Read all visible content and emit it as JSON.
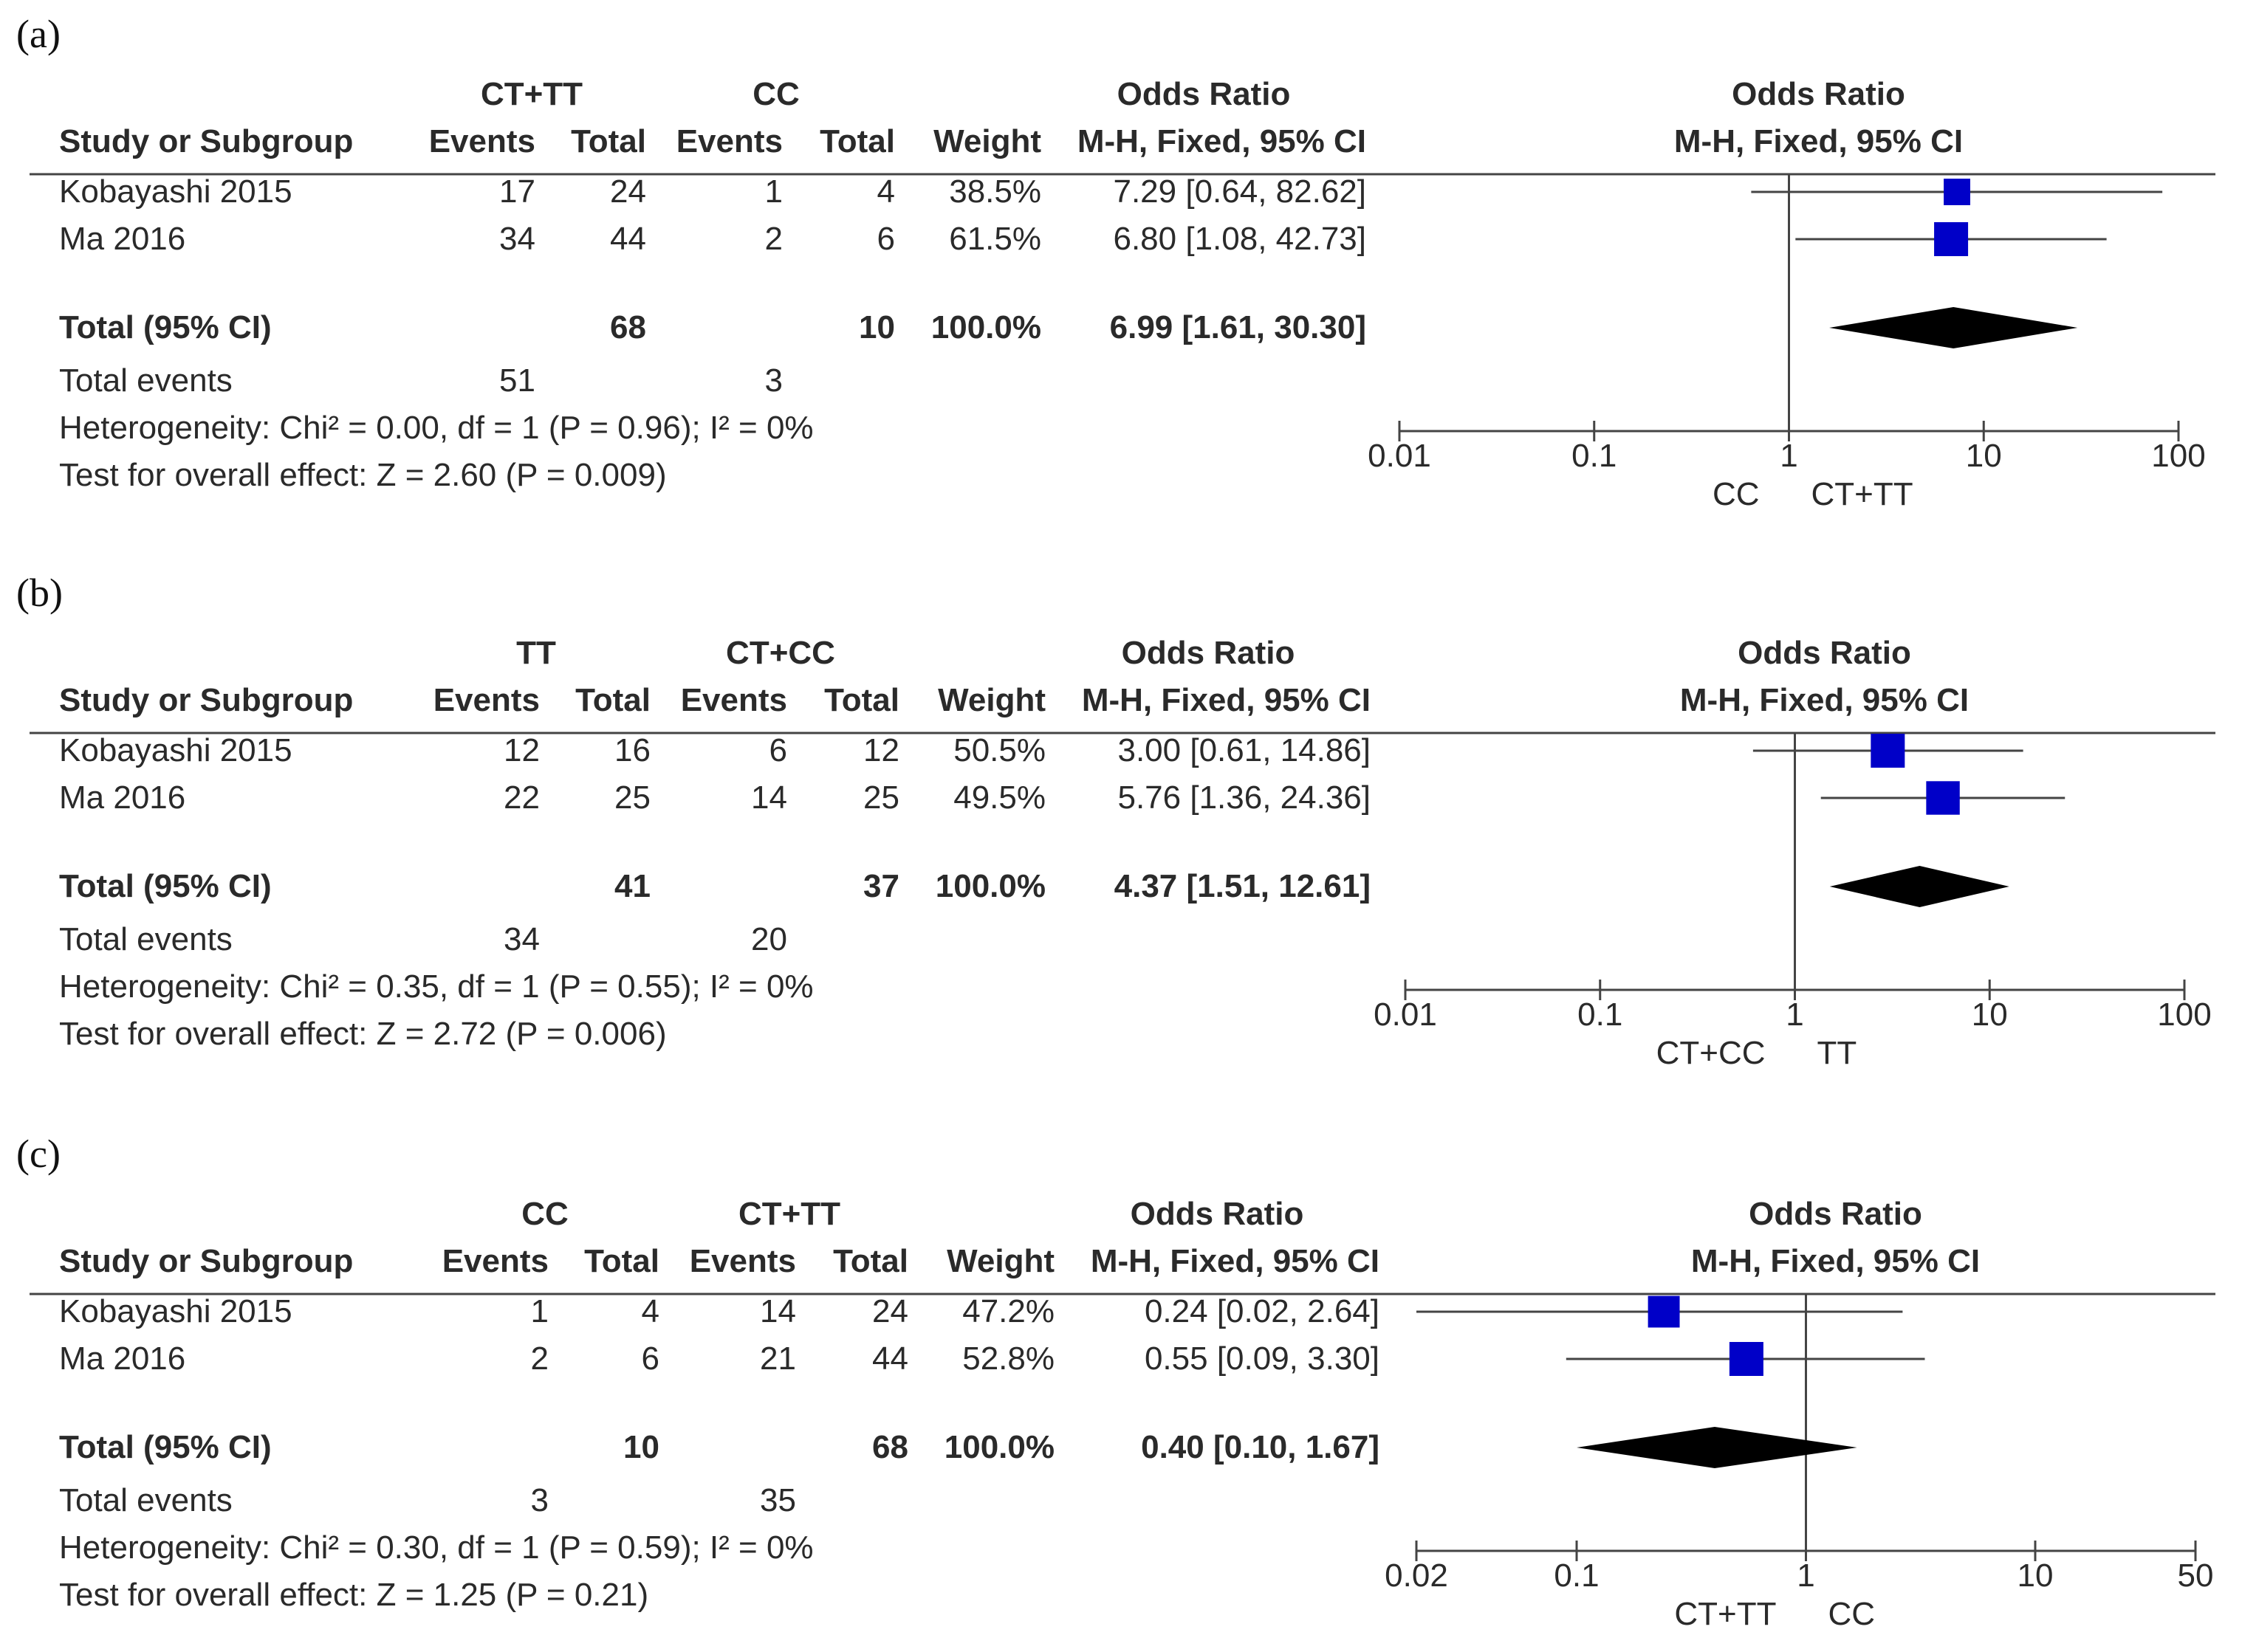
{
  "chart_data": [
    {
      "type": "forest",
      "panel_label": "(a)",
      "col_groups": [
        "CT+TT",
        "CC"
      ],
      "header_right_top": "Odds Ratio",
      "header_right_bottom": "M-H, Fixed, 95% CI",
      "col_headers": [
        "Study or Subgroup",
        "Events",
        "Total",
        "Events",
        "Total",
        "Weight",
        "M-H, Fixed, 95% CI"
      ],
      "studies": [
        {
          "name": "Kobayashi 2015",
          "e1": "17",
          "t1": "24",
          "e2": "1",
          "t2": "4",
          "weight": "38.5%",
          "ci_text": "7.29 [0.64, 82.62]",
          "or": 7.29,
          "lo": 0.64,
          "hi": 82.62,
          "w": 38.5
        },
        {
          "name": "Ma 2016",
          "e1": "34",
          "t1": "44",
          "e2": "2",
          "t2": "6",
          "weight": "61.5%",
          "ci_text": "6.80 [1.08, 42.73]",
          "or": 6.8,
          "lo": 1.08,
          "hi": 42.73,
          "w": 61.5
        }
      ],
      "total": {
        "label": "Total (95% CI)",
        "t1": "68",
        "t2": "10",
        "weight": "100.0%",
        "ci_text": "6.99 [1.61, 30.30]",
        "or": 6.99,
        "lo": 1.61,
        "hi": 30.3
      },
      "total_events": {
        "label": "Total events",
        "e1": "51",
        "e2": "3"
      },
      "heterogeneity": "Heterogeneity: Chi² = 0.00, df = 1 (P = 0.96); I² = 0%",
      "overall": "Test for overall effect: Z = 2.60 (P = 0.009)",
      "axis": {
        "min": 0.01,
        "max": 100,
        "ticks": [
          0.01,
          0.1,
          1,
          10,
          100
        ],
        "tick_labels": [
          "0.01",
          "0.1",
          "1",
          "10",
          "100"
        ]
      },
      "favours_left": "CC",
      "favours_right": "CT+TT"
    },
    {
      "type": "forest",
      "panel_label": "(b)",
      "col_groups": [
        "TT",
        "CT+CC"
      ],
      "header_right_top": "Odds Ratio",
      "header_right_bottom": "M-H, Fixed, 95% CI",
      "col_headers": [
        "Study or Subgroup",
        "Events",
        "Total",
        "Events",
        "Total",
        "Weight",
        "M-H, Fixed, 95% CI"
      ],
      "studies": [
        {
          "name": "Kobayashi 2015",
          "e1": "12",
          "t1": "16",
          "e2": "6",
          "t2": "12",
          "weight": "50.5%",
          "ci_text": "3.00 [0.61, 14.86]",
          "or": 3.0,
          "lo": 0.61,
          "hi": 14.86,
          "w": 50.5
        },
        {
          "name": "Ma 2016",
          "e1": "22",
          "t1": "25",
          "e2": "14",
          "t2": "25",
          "weight": "49.5%",
          "ci_text": "5.76 [1.36, 24.36]",
          "or": 5.76,
          "lo": 1.36,
          "hi": 24.36,
          "w": 49.5
        }
      ],
      "total": {
        "label": "Total (95% CI)",
        "t1": "41",
        "t2": "37",
        "weight": "100.0%",
        "ci_text": "4.37 [1.51, 12.61]",
        "or": 4.37,
        "lo": 1.51,
        "hi": 12.61
      },
      "total_events": {
        "label": "Total events",
        "e1": "34",
        "e2": "20"
      },
      "heterogeneity": "Heterogeneity: Chi² = 0.35, df = 1 (P = 0.55); I² = 0%",
      "overall": "Test for overall effect: Z = 2.72 (P = 0.006)",
      "axis": {
        "min": 0.01,
        "max": 100,
        "ticks": [
          0.01,
          0.1,
          1,
          10,
          100
        ],
        "tick_labels": [
          "0.01",
          "0.1",
          "1",
          "10",
          "100"
        ]
      },
      "favours_left": "CT+CC",
      "favours_right": "TT"
    },
    {
      "type": "forest",
      "panel_label": "(c)",
      "col_groups": [
        "CC",
        "CT+TT"
      ],
      "header_right_top": "Odds Ratio",
      "header_right_bottom": "M-H, Fixed, 95% CI",
      "col_headers": [
        "Study or Subgroup",
        "Events",
        "Total",
        "Events",
        "Total",
        "Weight",
        "M-H, Fixed, 95% CI"
      ],
      "studies": [
        {
          "name": "Kobayashi 2015",
          "e1": "1",
          "t1": "4",
          "e2": "14",
          "t2": "24",
          "weight": "47.2%",
          "ci_text": "0.24 [0.02, 2.64]",
          "or": 0.24,
          "lo": 0.02,
          "hi": 2.64,
          "w": 47.2
        },
        {
          "name": "Ma 2016",
          "e1": "2",
          "t1": "6",
          "e2": "21",
          "t2": "44",
          "weight": "52.8%",
          "ci_text": "0.55 [0.09, 3.30]",
          "or": 0.55,
          "lo": 0.09,
          "hi": 3.3,
          "w": 52.8
        }
      ],
      "total": {
        "label": "Total (95% CI)",
        "t1": "10",
        "t2": "68",
        "weight": "100.0%",
        "ci_text": "0.40 [0.10, 1.67]",
        "or": 0.4,
        "lo": 0.1,
        "hi": 1.67
      },
      "total_events": {
        "label": "Total events",
        "e1": "3",
        "e2": "35"
      },
      "heterogeneity": "Heterogeneity: Chi² = 0.30, df = 1 (P = 0.59); I² = 0%",
      "overall": "Test for overall effect: Z = 1.25 (P = 0.21)",
      "axis": {
        "min": 0.02,
        "max": 50,
        "ticks": [
          0.02,
          0.1,
          1,
          10,
          50
        ],
        "tick_labels": [
          "0.02",
          "0.1",
          "1",
          "10",
          "50"
        ]
      },
      "favours_left": "CT+TT",
      "favours_right": "CC"
    }
  ],
  "colors": {
    "square": "#0000c8",
    "diamond": "#000000",
    "text": "#2a2a2a",
    "line": "#444444"
  }
}
